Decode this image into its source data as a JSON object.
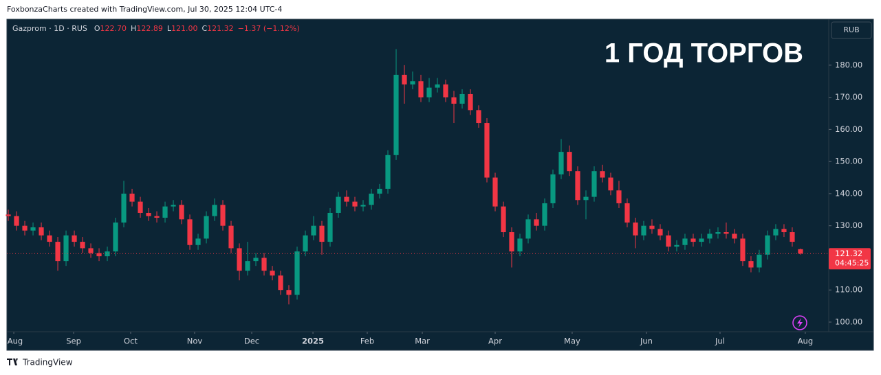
{
  "header": {
    "caption": "FoxbonzaCharts created with TradingView.com, Jul 30, 2025 12:04 UTC-4",
    "symbol": "Gazprom · 1D · RUS",
    "ohlc": [
      {
        "key": "O",
        "value": "122.70"
      },
      {
        "key": "H",
        "value": "122.89"
      },
      {
        "key": "L",
        "value": "121.00"
      },
      {
        "key": "C",
        "value": "121.32"
      }
    ],
    "change": "−1.37 (−1.12%)",
    "currency": "RUB",
    "countdown": "04:45:25"
  },
  "footer": {
    "brand": "TradingView"
  },
  "chart_data": {
    "type": "candlestick",
    "annotation": "1 ГОД ТОРГОВ",
    "up_color": "#089981",
    "down_color": "#f23645",
    "background": "#0c2535",
    "grid": false,
    "xlim": [
      -0.17,
      99.42
    ],
    "xticks": [
      {
        "value": 0.67,
        "label": "Aug"
      },
      {
        "value": 7.92,
        "label": "Sep"
      },
      {
        "value": 14.83,
        "label": "Oct"
      },
      {
        "value": 22.58,
        "label": "Nov"
      },
      {
        "value": 29.5,
        "label": "Dec"
      },
      {
        "value": 36.92,
        "label": "2025"
      },
      {
        "value": 43.5,
        "label": "Feb"
      },
      {
        "value": 50.17,
        "label": "Mar"
      },
      {
        "value": 59,
        "label": "Apr"
      },
      {
        "value": 68.33,
        "label": "May"
      },
      {
        "value": 77.33,
        "label": "Jun"
      },
      {
        "value": 86.25,
        "label": "Jul"
      },
      {
        "value": 96.58,
        "label": "Aug"
      }
    ],
    "ylim": [
      97,
      194.3
    ],
    "yticks": [
      {
        "value": 100,
        "label": "100.00"
      },
      {
        "value": 110,
        "label": "110.00"
      },
      {
        "value": 120,
        "label": "120.00"
      },
      {
        "value": 130,
        "label": "130.00"
      },
      {
        "value": 140,
        "label": "140.00"
      },
      {
        "value": 150,
        "label": "150.00"
      },
      {
        "value": 160,
        "label": "160.00"
      },
      {
        "value": 170,
        "label": "170.00"
      },
      {
        "value": 180,
        "label": "180.00"
      }
    ],
    "open": [
      133.5,
      133,
      130,
      128.5,
      129.5,
      127,
      125,
      119,
      127,
      125,
      123,
      121.5,
      120.5,
      122,
      131,
      140,
      137.5,
      134,
      133,
      132.5,
      136,
      136.5,
      132,
      124,
      126,
      133,
      136.5,
      130,
      123,
      116,
      119,
      120,
      116,
      114.5,
      110,
      108.5,
      122,
      127,
      130,
      125,
      134,
      139,
      137.5,
      136,
      136.5,
      140,
      141.5,
      152,
      177,
      174,
      175,
      170,
      173,
      174,
      170,
      168,
      171,
      166,
      162,
      145,
      136,
      128,
      122,
      126,
      132,
      130,
      137,
      146,
      153,
      147,
      138,
      139,
      147,
      145,
      141,
      137,
      131,
      127,
      130,
      129,
      127,
      123.5,
      124,
      126,
      125,
      126,
      127.5,
      128,
      127.5,
      126,
      119,
      117,
      121,
      127,
      129,
      128,
      122.7
    ],
    "high": [
      135,
      134.5,
      131.5,
      131,
      131,
      128.5,
      126.5,
      128.5,
      128.5,
      126.5,
      124.5,
      123,
      123.5,
      132.5,
      144,
      141.5,
      139,
      135.5,
      134.5,
      137.5,
      138,
      138,
      133.5,
      127.5,
      134.5,
      138.5,
      138,
      131.5,
      124.5,
      125,
      121.5,
      121.5,
      117.5,
      116,
      111.5,
      123.5,
      128.5,
      133,
      131.5,
      135.5,
      140.5,
      141,
      139,
      138,
      141.5,
      143,
      153.5,
      185,
      180,
      178,
      177,
      176,
      176,
      175.5,
      172,
      172.5,
      172.5,
      167.5,
      163.5,
      146.5,
      137.5,
      129.5,
      127.5,
      133.5,
      134,
      138.5,
      147.5,
      157,
      155,
      148.5,
      141,
      148.5,
      149,
      146.5,
      144,
      138.5,
      132.5,
      131.5,
      132,
      130.5,
      128.5,
      125.5,
      127.5,
      127.5,
      127.5,
      129,
      129.5,
      131,
      129,
      127.5,
      120.5,
      122.5,
      128.5,
      130.5,
      130.5,
      129.5,
      122.89
    ],
    "low": [
      131.5,
      128.5,
      127,
      127,
      125.5,
      123.5,
      116,
      117.5,
      123.5,
      121.5,
      120,
      119,
      119,
      120.5,
      129.5,
      136,
      132.5,
      131.5,
      131,
      131,
      134.5,
      130.5,
      122.5,
      122.5,
      124.5,
      131.5,
      128.5,
      121.5,
      113,
      114.5,
      117.5,
      114.5,
      113,
      108.5,
      105.5,
      107,
      120.5,
      125.5,
      121,
      123.5,
      132.5,
      136,
      134.5,
      134.5,
      135,
      138.5,
      140,
      150.5,
      168,
      172.5,
      168.5,
      168.5,
      171.5,
      168.5,
      162,
      166.5,
      164.5,
      160.5,
      143.5,
      134.5,
      126.5,
      117,
      120.5,
      124.5,
      128.5,
      128.5,
      135.5,
      144.5,
      145.5,
      136.5,
      132,
      137.5,
      143.5,
      139.5,
      135.5,
      129.5,
      123,
      125.5,
      127.5,
      125.5,
      122,
      122,
      122.5,
      123.5,
      123.5,
      124.5,
      126,
      126,
      124.5,
      117.5,
      115.5,
      115.5,
      119.5,
      125.5,
      126.5,
      123.5,
      121
    ],
    "close": [
      133,
      130,
      128.5,
      129.5,
      127,
      125,
      119,
      127,
      125,
      123,
      121.5,
      120.5,
      122,
      131,
      140,
      137.5,
      134,
      133,
      132.5,
      136,
      136.5,
      132,
      124,
      126,
      133,
      136.5,
      130,
      123,
      116,
      119,
      120,
      116,
      114.5,
      110,
      108.5,
      122,
      127,
      130,
      125,
      134,
      139,
      137.5,
      136,
      136.5,
      140,
      141.5,
      152,
      177,
      174,
      175,
      170,
      173,
      174,
      170,
      168,
      171,
      166,
      162,
      145,
      136,
      128,
      122,
      126,
      132,
      130,
      137,
      146,
      153,
      147,
      138,
      139,
      147,
      145,
      141,
      137,
      131,
      127,
      130,
      129,
      127,
      123.5,
      124,
      126,
      125,
      126,
      127.5,
      128,
      127.5,
      126,
      119,
      117,
      121,
      127,
      129,
      128,
      125,
      121.32
    ]
  }
}
